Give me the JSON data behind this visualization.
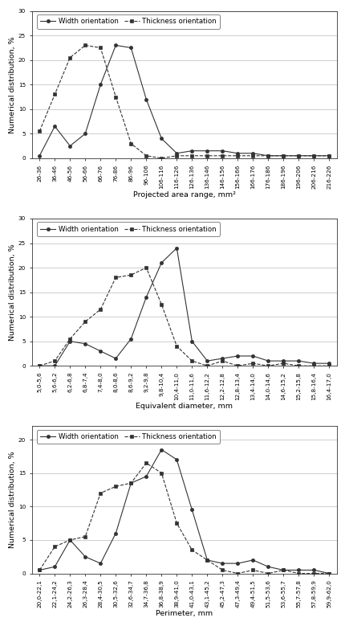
{
  "chart1": {
    "xlabel": "Projected area range, mm²",
    "ylabel": "Numerical distribution, %",
    "ylim": [
      0,
      30
    ],
    "yticks": [
      0,
      5,
      10,
      15,
      20,
      25,
      30
    ],
    "categories": [
      "26-36",
      "36-46",
      "46-56",
      "56-66",
      "66-76",
      "76-86",
      "86-96",
      "96-106",
      "106-116",
      "116-126",
      "126-136",
      "136-146",
      "146-156",
      "156-166",
      "166-176",
      "176-186",
      "186-196",
      "196-206",
      "206-216",
      "216-226"
    ],
    "width_vals": [
      0.5,
      6.5,
      2.5,
      5.0,
      15.0,
      23.0,
      22.5,
      12.0,
      4.0,
      1.0,
      1.5,
      1.5,
      1.5,
      1.0,
      1.0,
      0.5,
      0.5,
      0.5,
      0.5,
      0.5
    ],
    "thick_vals": [
      5.5,
      13.0,
      20.5,
      23.0,
      22.5,
      12.5,
      3.0,
      0.5,
      0.0,
      0.5,
      0.5,
      0.5,
      0.5,
      0.5,
      0.5,
      0.5,
      0.5,
      0.5,
      0.5,
      0.5
    ]
  },
  "chart2": {
    "xlabel": "Equivalent diameter, mm",
    "ylabel": "Numerical distribution, %",
    "ylim": [
      0,
      30
    ],
    "yticks": [
      0,
      5,
      10,
      15,
      20,
      25,
      30
    ],
    "categories": [
      "5,0-5,6",
      "5,6-6,2",
      "6,2-6,8",
      "6,8-7,4",
      "7,4-8,0",
      "8,0-8,6",
      "8,6-9,2",
      "9,2-9,8",
      "9,8-10,4",
      "10,4-11,0",
      "11,0-11,6",
      "11,6-12,2",
      "12,2-12,8",
      "12,8-13,4",
      "13,4-14,0",
      "14,0-14,6",
      "14,6-15,2",
      "15,2-15,8",
      "15,8-16,4",
      "16,4-17,0"
    ],
    "width_vals": [
      0.0,
      0.0,
      5.0,
      4.5,
      3.0,
      1.5,
      5.5,
      14.0,
      21.0,
      24.0,
      5.0,
      1.0,
      1.5,
      2.0,
      2.0,
      1.0,
      1.0,
      1.0,
      0.5,
      0.5
    ],
    "thick_vals": [
      0.0,
      1.0,
      5.5,
      9.0,
      11.5,
      18.0,
      18.5,
      20.0,
      12.5,
      4.0,
      1.0,
      0.0,
      1.0,
      0.0,
      0.5,
      0.0,
      0.5,
      0.0,
      0.0,
      0.0
    ]
  },
  "chart3": {
    "xlabel": "Perimeter, mm",
    "ylabel": "Numerical distribution, %",
    "ylim": [
      0,
      22
    ],
    "yticks": [
      0,
      5,
      10,
      15,
      20
    ],
    "categories": [
      "20,0-22,1",
      "22,1-24,2",
      "24,2-26,3",
      "26,3-28,4",
      "28,4-30,5",
      "30,5-32,6",
      "32,6-34,7",
      "34,7-36,8",
      "36,8-38,9",
      "38,9-41,0",
      "41,0-43,1",
      "43,1-45,2",
      "45,2-47,3",
      "47,3-49,4",
      "49,4-51,5",
      "51,5-53,6",
      "53,6-55,7",
      "55,7-57,8",
      "57,8-59,9",
      "59,9-62,0"
    ],
    "width_vals": [
      0.5,
      1.0,
      5.0,
      2.5,
      1.5,
      6.0,
      13.5,
      14.5,
      18.5,
      17.0,
      9.5,
      2.0,
      1.5,
      1.5,
      2.0,
      1.0,
      0.5,
      0.5,
      0.5,
      0.0
    ],
    "thick_vals": [
      0.5,
      4.0,
      5.0,
      5.5,
      12.0,
      13.0,
      13.5,
      16.5,
      15.0,
      7.5,
      3.5,
      2.0,
      0.5,
      0.0,
      0.5,
      0.0,
      0.5,
      0.0,
      0.0,
      0.0
    ]
  },
  "line_color": "#333333",
  "bg_color": "#ffffff",
  "grid_color": "#bbbbbb",
  "legend_width_label": "Width orientation",
  "legend_thick_label": "Thickness orientation",
  "tick_fontsize": 5.2,
  "label_fontsize": 6.8,
  "legend_fontsize": 6.2
}
